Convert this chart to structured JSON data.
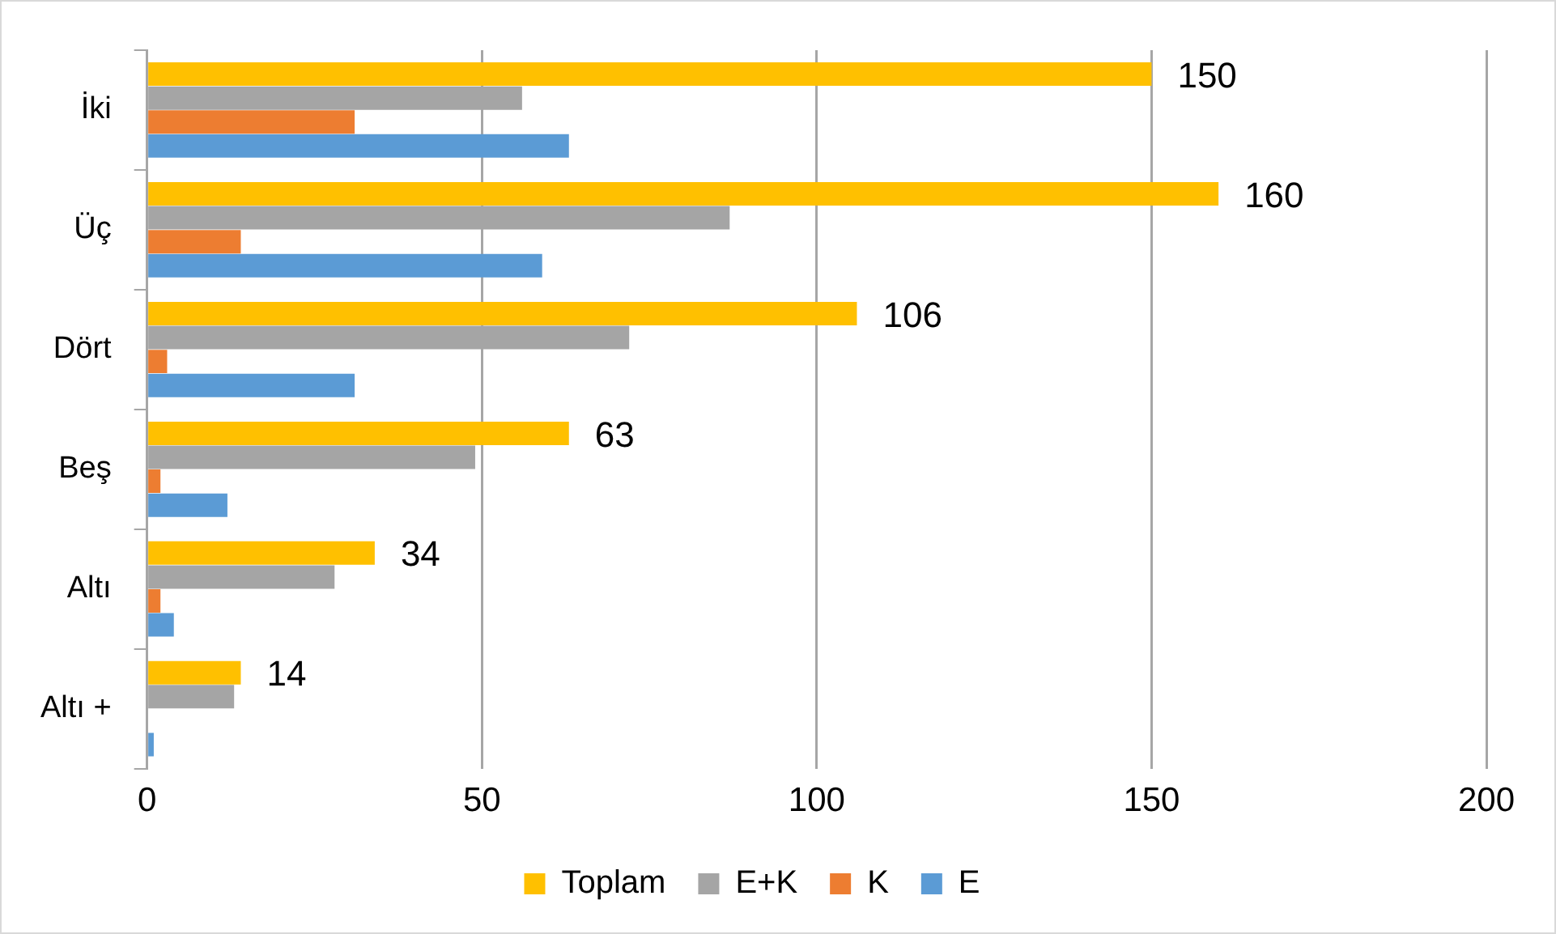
{
  "chart_data": {
    "type": "bar",
    "orientation": "horizontal",
    "categories": [
      "İki",
      "Üç",
      "Dört",
      "Beş",
      "Altı",
      "Altı +"
    ],
    "series": [
      {
        "name": "Toplam",
        "color": "#ffc000",
        "values": [
          150,
          160,
          106,
          63,
          34,
          14
        ],
        "value_labels": [
          "150",
          "160",
          "106",
          "63",
          "34",
          "14"
        ]
      },
      {
        "name": "E+K",
        "color": "#a5a5a5",
        "values": [
          56,
          87,
          72,
          49,
          28,
          13
        ]
      },
      {
        "name": "K",
        "color": "#ed7d31",
        "values": [
          31,
          14,
          3,
          2,
          2,
          0
        ]
      },
      {
        "name": "E",
        "color": "#5b9bd5",
        "values": [
          63,
          59,
          31,
          12,
          4,
          1
        ]
      }
    ],
    "xlim": [
      0,
      200
    ],
    "xticks": [
      0,
      50,
      100,
      150,
      200
    ],
    "grid": "x",
    "legend": "bottom"
  }
}
